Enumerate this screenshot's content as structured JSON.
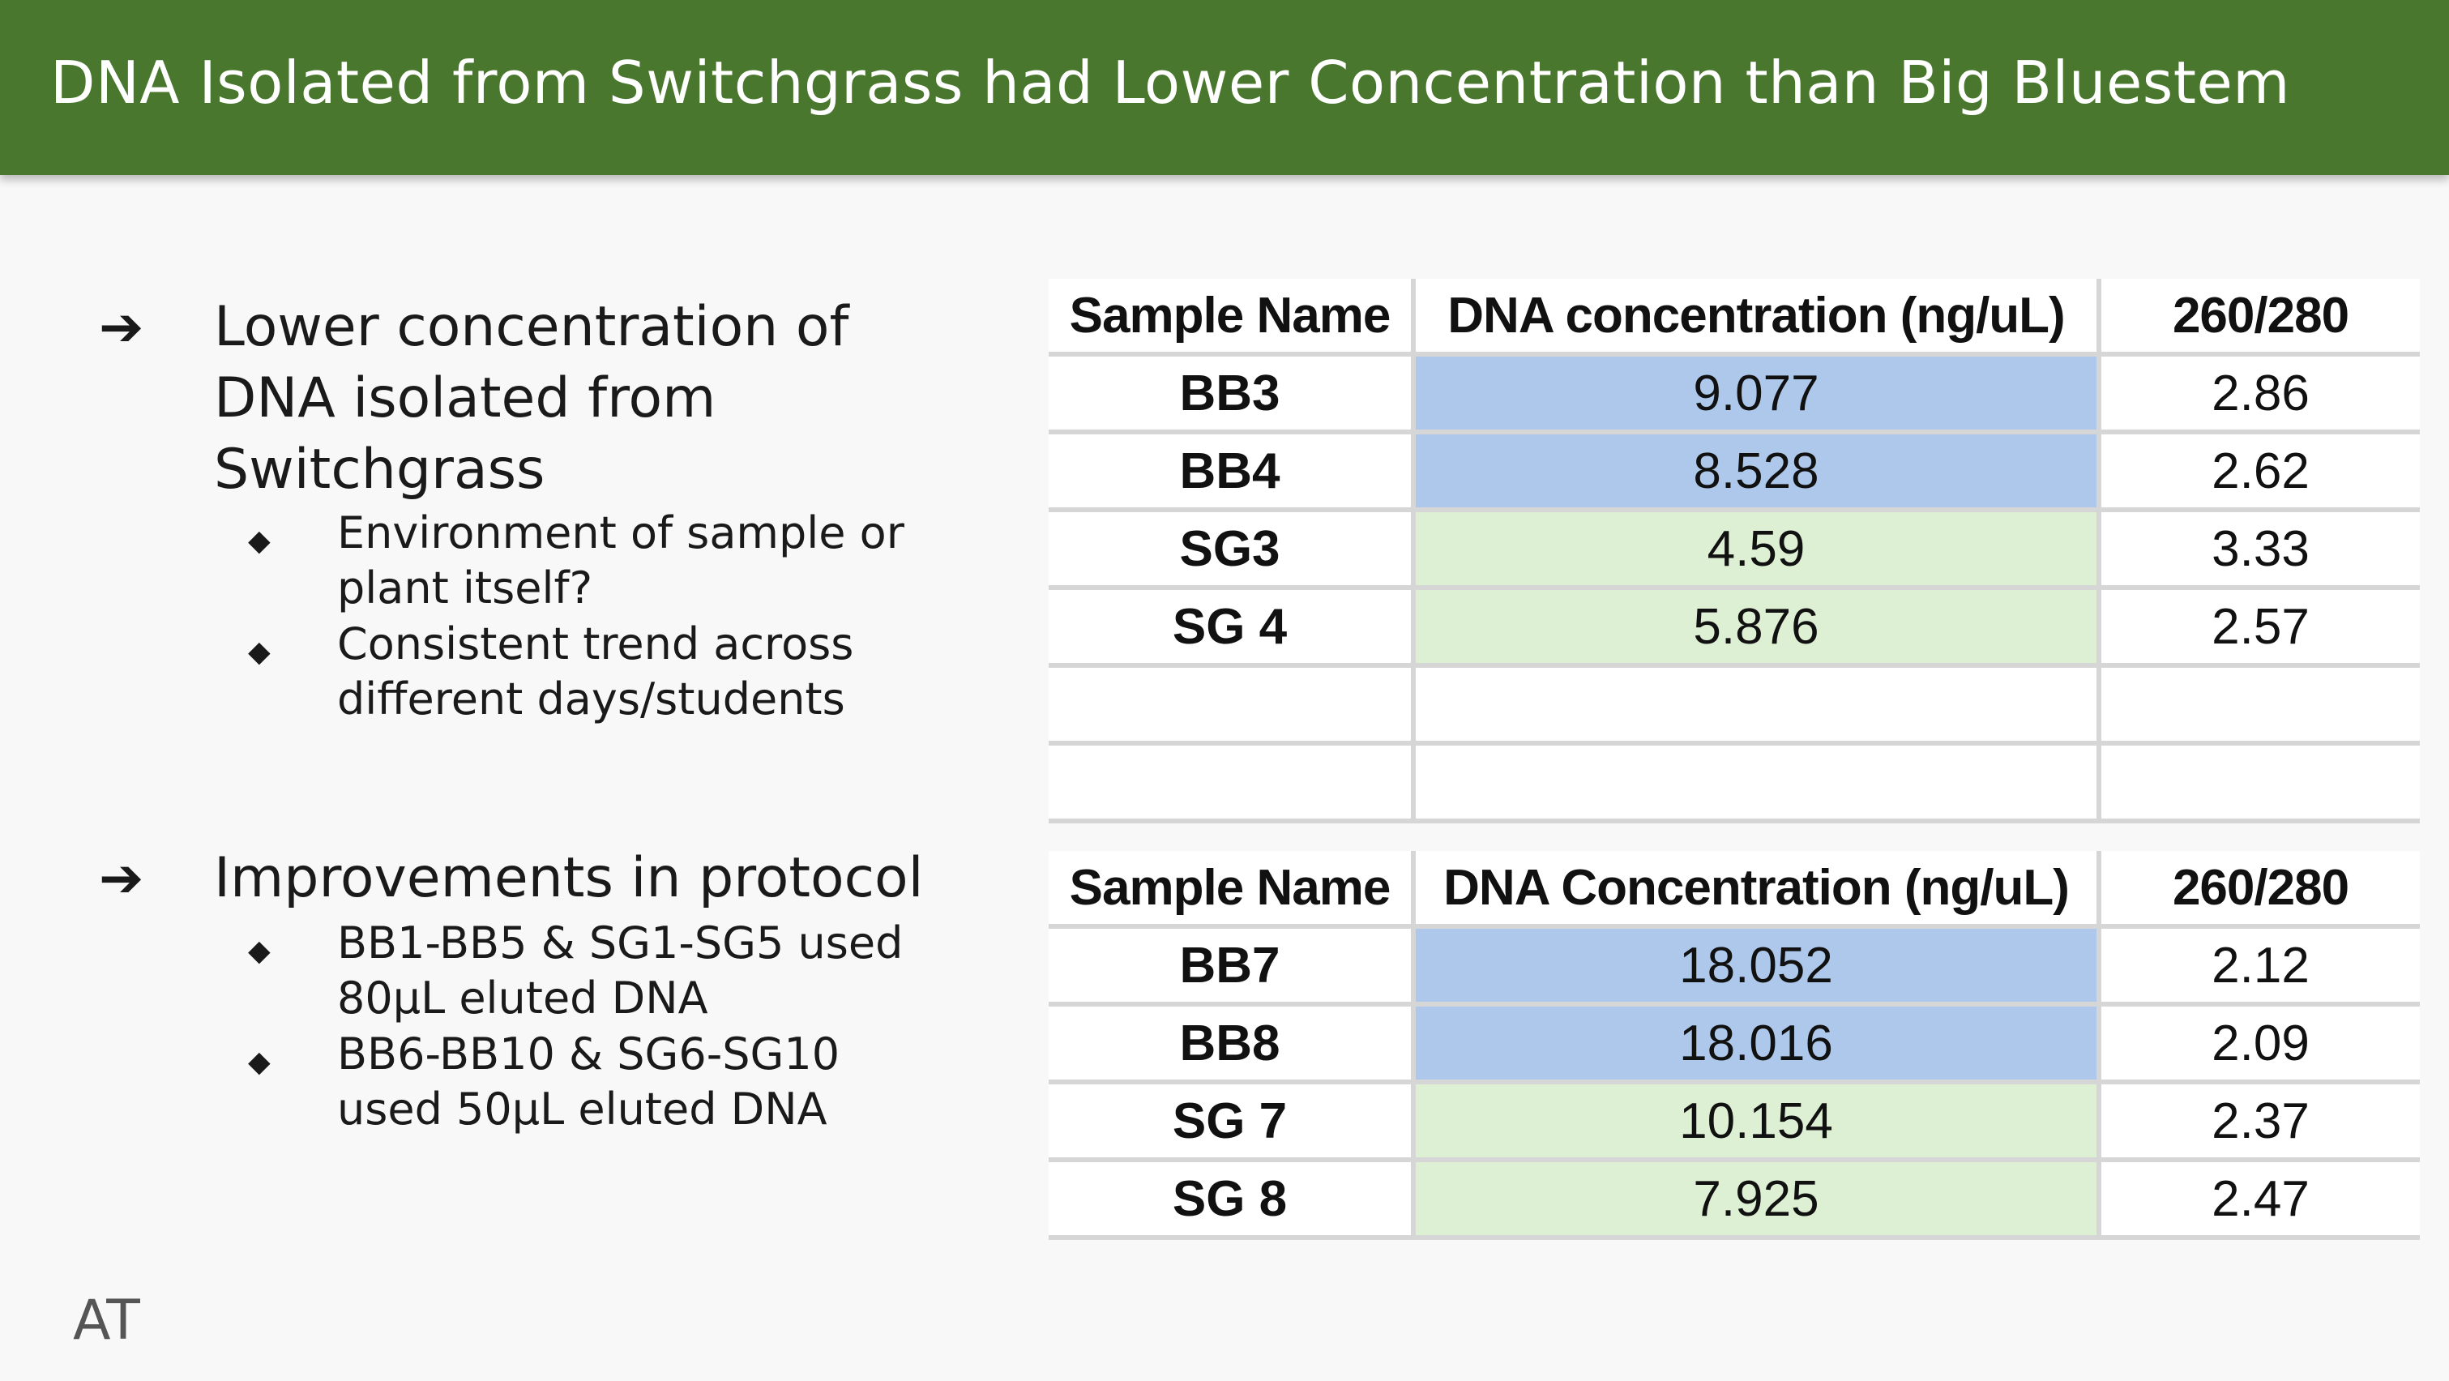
{
  "slide": {
    "title": "DNA Isolated from Switchgrass had Lower Concentration than Big Bluestem",
    "initials": "AT"
  },
  "bullets": [
    {
      "text": "Lower concentration of DNA isolated from Switchgrass",
      "sub": [
        "Environment of sample or plant itself?",
        "Consistent trend across different days/students"
      ]
    },
    {
      "text": "Improvements in protocol",
      "sub": [
        "BB1-BB5 & SG1-SG5 used 80μL eluted DNA",
        "BB6-BB10 & SG6-SG10 used 50μL eluted DNA"
      ]
    }
  ],
  "icons": {
    "level1": "arrow-right-icon",
    "level2": "diamond-bullet-icon"
  },
  "colors": {
    "title_bar": "#4a772e",
    "bb_cell": "#adc8ea",
    "sg_cell": "#ddf0d3"
  },
  "table1": {
    "headers": [
      "Sample Name",
      "DNA concentration (ng/uL)",
      "260/280"
    ],
    "rows": [
      {
        "name": "BB3",
        "conc": "9.077",
        "ratio": "2.86"
      },
      {
        "name": "BB4",
        "conc": "8.528",
        "ratio": "2.62"
      },
      {
        "name": "SG3",
        "conc": "4.59",
        "ratio": "3.33"
      },
      {
        "name": "SG 4",
        "conc": "5.876",
        "ratio": "2.57"
      }
    ]
  },
  "table2": {
    "headers": [
      "Sample Name",
      "DNA Concentration (ng/uL)",
      "260/280"
    ],
    "rows": [
      {
        "name": "BB7",
        "conc": "18.052",
        "ratio": "2.12"
      },
      {
        "name": "BB8",
        "conc": "18.016",
        "ratio": "2.09"
      },
      {
        "name": "SG 7",
        "conc": "10.154",
        "ratio": "2.37"
      },
      {
        "name": "SG 8",
        "conc": "7.925",
        "ratio": "2.47"
      }
    ]
  }
}
